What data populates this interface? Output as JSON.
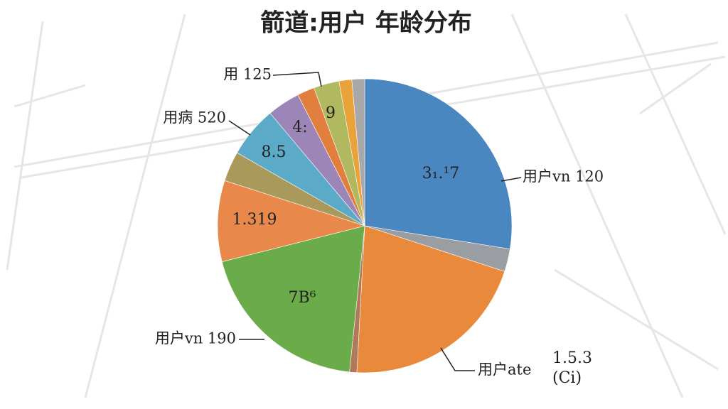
{
  "chart_data": {
    "type": "pie",
    "title": "箭道:用户 年龄分布",
    "categories": [
      "用户vn 120",
      null,
      "用户ate",
      null,
      "用户vn 190",
      null,
      null,
      "用病 520",
      null,
      null,
      "用 125",
      null,
      null
    ],
    "values": [
      27.5,
      2.5,
      20.8,
      0.8,
      19.4,
      8.9,
      3.3,
      5.6,
      3.6,
      1.9,
      2.8,
      1.4,
      1.4
    ],
    "colors": [
      "#4a86c0",
      "#9a9ea3",
      "#e8893c",
      "#b07a5a",
      "#6aac4a",
      "#e8884a",
      "#a99a5c",
      "#5aaac8",
      "#9c86b8",
      "#e27f3e",
      "#b0b860",
      "#eaa23a",
      "#a8a8a8"
    ],
    "annotations": [
      "3₁.¹7",
      "1.5.3",
      "(Ci)",
      "7B⁶",
      "1.319",
      "8.5",
      "4:",
      "9"
    ]
  }
}
